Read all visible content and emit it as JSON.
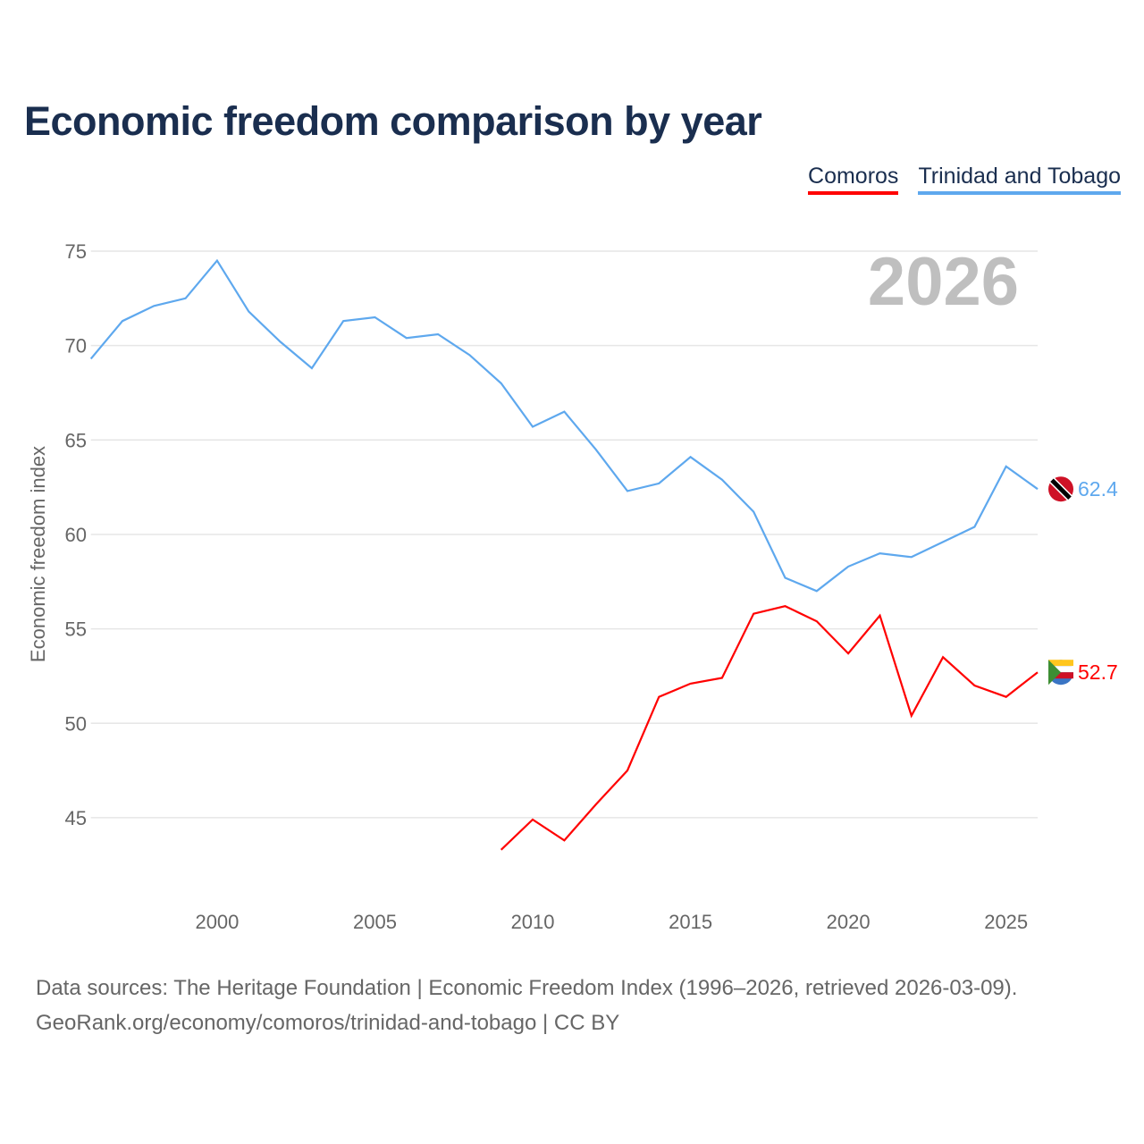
{
  "title": "Economic freedom comparison by year",
  "footer": {
    "line1": "Data sources: The Heritage Foundation | Economic Freedom Index (1996–2026, retrieved 2026-03-09).",
    "line2": "GeoRank.org/economy/comoros/trinidad-and-tobago | CC BY"
  },
  "chart_data": {
    "type": "line",
    "title": "Economic freedom comparison by year",
    "ylabel": "Economic freedom index",
    "xlabel": "",
    "year_label": "2026",
    "xlim": [
      1996,
      2026
    ],
    "ylim": [
      41.7,
      77
    ],
    "yticks": [
      45,
      50,
      55,
      60,
      65,
      70,
      75
    ],
    "xticks": [
      2000,
      2005,
      2010,
      2015,
      2020,
      2025
    ],
    "grid": true,
    "legend_position": "top-right",
    "series": [
      {
        "name": "Comoros",
        "color": "#ff0000",
        "end_label": "52.7",
        "x": [
          2009,
          2010,
          2011,
          2012,
          2013,
          2014,
          2015,
          2016,
          2017,
          2018,
          2019,
          2020,
          2021,
          2022,
          2023,
          2024,
          2025,
          2026
        ],
        "values": [
          43.3,
          44.9,
          43.8,
          45.7,
          47.5,
          51.4,
          52.1,
          52.4,
          55.8,
          56.2,
          55.4,
          53.7,
          55.7,
          50.4,
          53.5,
          52.0,
          51.4,
          52.7
        ]
      },
      {
        "name": "Trinidad and Tobago",
        "color": "#5ea8ee",
        "end_label": "62.4",
        "x": [
          1996,
          1997,
          1998,
          1999,
          2000,
          2001,
          2002,
          2003,
          2004,
          2005,
          2006,
          2007,
          2008,
          2009,
          2010,
          2011,
          2012,
          2013,
          2014,
          2015,
          2016,
          2017,
          2018,
          2019,
          2020,
          2021,
          2022,
          2023,
          2024,
          2025,
          2026
        ],
        "values": [
          69.3,
          71.3,
          72.1,
          72.5,
          74.5,
          71.8,
          70.2,
          68.8,
          71.3,
          71.5,
          70.4,
          70.6,
          69.5,
          68.0,
          65.7,
          66.5,
          64.5,
          62.3,
          62.7,
          64.1,
          62.9,
          61.2,
          57.7,
          57.0,
          58.3,
          59.0,
          58.8,
          59.6,
          60.4,
          63.6,
          62.4
        ]
      }
    ]
  }
}
